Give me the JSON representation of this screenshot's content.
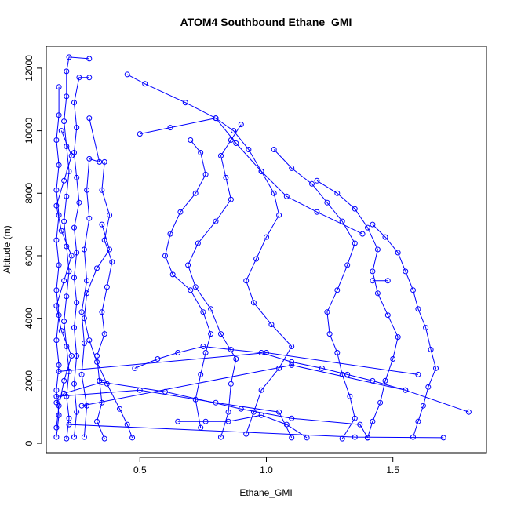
{
  "chart_data": {
    "type": "scatter",
    "title": "ATOM4 Southbound Ethane_GMI",
    "xlabel": "Ethane_GMI",
    "ylabel": "Altitude (m)",
    "xlim": [
      0.13,
      1.87
    ],
    "ylim": [
      -300,
      12700
    ],
    "xticks": [
      0.5,
      1.0,
      1.5
    ],
    "xtick_labels": [
      "0.5",
      "1.0",
      "1.5"
    ],
    "yticks": [
      0,
      2000,
      4000,
      6000,
      8000,
      10000,
      12000
    ],
    "ytick_labels": [
      "0",
      "2000",
      "4000",
      "6000",
      "8000",
      "10000",
      "12000"
    ],
    "grid": false,
    "marker": "open-circle",
    "line_style": "connected",
    "color": "#0000ff",
    "series": [
      {
        "values": [
          [
            0.17,
            200
          ],
          [
            0.18,
            900
          ],
          [
            0.17,
            1700
          ],
          [
            0.18,
            2500
          ],
          [
            0.17,
            3300
          ],
          [
            0.18,
            4100
          ],
          [
            0.17,
            4900
          ],
          [
            0.18,
            5700
          ],
          [
            0.17,
            6500
          ],
          [
            0.18,
            7300
          ],
          [
            0.17,
            8100
          ],
          [
            0.18,
            8900
          ],
          [
            0.17,
            9700
          ],
          [
            0.18,
            10500
          ],
          [
            0.18,
            11400
          ]
        ]
      },
      {
        "values": [
          [
            0.21,
            150
          ],
          [
            0.22,
            800
          ],
          [
            0.21,
            1500
          ],
          [
            0.22,
            2300
          ],
          [
            0.21,
            3100
          ],
          [
            0.2,
            3900
          ],
          [
            0.21,
            4700
          ],
          [
            0.22,
            5500
          ],
          [
            0.21,
            6300
          ],
          [
            0.2,
            7100
          ],
          [
            0.21,
            7900
          ],
          [
            0.22,
            8700
          ],
          [
            0.21,
            9500
          ],
          [
            0.2,
            10300
          ],
          [
            0.21,
            11100
          ],
          [
            0.21,
            11900
          ],
          [
            0.22,
            12350
          ],
          [
            0.3,
            12300
          ]
        ]
      },
      {
        "values": [
          [
            0.24,
            200
          ],
          [
            0.25,
            1000
          ],
          [
            0.24,
            1900
          ],
          [
            0.25,
            2800
          ],
          [
            0.24,
            3700
          ],
          [
            0.25,
            4500
          ],
          [
            0.24,
            5300
          ],
          [
            0.25,
            6100
          ],
          [
            0.24,
            6900
          ],
          [
            0.26,
            7700
          ],
          [
            0.25,
            8500
          ],
          [
            0.24,
            9300
          ],
          [
            0.25,
            10100
          ],
          [
            0.24,
            10900
          ],
          [
            0.26,
            11700
          ],
          [
            0.3,
            11700
          ]
        ]
      },
      {
        "values": [
          [
            0.28,
            200
          ],
          [
            0.29,
            1200
          ],
          [
            0.27,
            2200
          ],
          [
            0.28,
            3200
          ],
          [
            0.27,
            4200
          ],
          [
            0.29,
            5200
          ],
          [
            0.28,
            6200
          ],
          [
            0.3,
            7200
          ],
          [
            0.29,
            8100
          ],
          [
            0.3,
            9100
          ],
          [
            0.34,
            9000
          ],
          [
            0.3,
            10400
          ]
        ]
      },
      {
        "values": [
          [
            0.36,
            150
          ],
          [
            0.33,
            700
          ],
          [
            0.35,
            1300
          ],
          [
            0.34,
            2000
          ],
          [
            0.33,
            2800
          ],
          [
            0.36,
            3500
          ],
          [
            0.35,
            4200
          ],
          [
            0.37,
            5000
          ],
          [
            0.39,
            5800
          ],
          [
            0.36,
            6500
          ],
          [
            0.38,
            7300
          ],
          [
            0.35,
            8100
          ],
          [
            0.36,
            9000
          ]
        ]
      },
      {
        "values": [
          [
            0.47,
            180
          ],
          [
            0.45,
            600
          ],
          [
            0.42,
            1100
          ],
          [
            0.37,
            1900
          ],
          [
            0.33,
            2600
          ],
          [
            0.3,
            3300
          ],
          [
            0.28,
            4000
          ],
          [
            0.29,
            4800
          ],
          [
            0.33,
            5600
          ],
          [
            0.38,
            6200
          ],
          [
            0.35,
            7000
          ]
        ]
      },
      {
        "values": [
          [
            0.17,
            1300
          ],
          [
            0.2,
            1600
          ],
          [
            0.35,
            1950
          ],
          [
            0.6,
            1650
          ],
          [
            0.9,
            1100
          ],
          [
            1.1,
            800
          ],
          [
            1.37,
            600
          ],
          [
            1.4,
            180
          ]
        ]
      },
      {
        "values": [
          [
            0.17,
            1500
          ],
          [
            0.5,
            1700
          ],
          [
            0.8,
            1300
          ],
          [
            1.05,
            1000
          ],
          [
            1.1,
            180
          ]
        ]
      },
      {
        "values": [
          [
            0.65,
            700
          ],
          [
            0.76,
            700
          ],
          [
            0.85,
            700
          ],
          [
            0.98,
            900
          ],
          [
            1.08,
            600
          ],
          [
            1.16,
            180
          ]
        ]
      },
      {
        "values": [
          [
            0.48,
            2400
          ],
          [
            0.57,
            2700
          ],
          [
            0.65,
            2900
          ],
          [
            0.75,
            3100
          ],
          [
            0.86,
            3000
          ],
          [
            0.98,
            2900
          ],
          [
            1.1,
            2600
          ],
          [
            1.22,
            2400
          ],
          [
            1.32,
            2200
          ],
          [
            1.42,
            2000
          ],
          [
            1.55,
            1700
          ],
          [
            1.8,
            1000
          ]
        ]
      },
      {
        "values": [
          [
            0.74,
            500
          ],
          [
            0.72,
            1400
          ],
          [
            0.74,
            2200
          ],
          [
            0.76,
            2900
          ],
          [
            0.78,
            3500
          ],
          [
            0.75,
            4200
          ],
          [
            0.7,
            4900
          ],
          [
            0.63,
            5400
          ],
          [
            0.6,
            6000
          ],
          [
            0.62,
            6700
          ],
          [
            0.66,
            7400
          ],
          [
            0.72,
            8000
          ],
          [
            0.76,
            8600
          ],
          [
            0.74,
            9300
          ],
          [
            0.7,
            9700
          ]
        ]
      },
      {
        "values": [
          [
            0.82,
            200
          ],
          [
            0.85,
            1000
          ],
          [
            0.86,
            1900
          ],
          [
            0.88,
            2700
          ],
          [
            0.82,
            3500
          ],
          [
            0.78,
            4300
          ],
          [
            0.72,
            5000
          ],
          [
            0.69,
            5700
          ],
          [
            0.73,
            6400
          ],
          [
            0.8,
            7100
          ],
          [
            0.86,
            7800
          ],
          [
            0.84,
            8500
          ],
          [
            0.82,
            9200
          ],
          [
            0.86,
            9700
          ],
          [
            0.9,
            10200
          ]
        ]
      },
      {
        "values": [
          [
            0.92,
            300
          ],
          [
            0.95,
            1000
          ],
          [
            0.98,
            1700
          ],
          [
            1.05,
            2400
          ],
          [
            1.1,
            3100
          ],
          [
            1.02,
            3800
          ],
          [
            0.95,
            4500
          ],
          [
            0.92,
            5200
          ],
          [
            0.96,
            5900
          ],
          [
            1.0,
            6600
          ],
          [
            1.05,
            7300
          ],
          [
            1.03,
            8000
          ],
          [
            0.98,
            8700
          ],
          [
            0.93,
            9400
          ],
          [
            0.87,
            10000
          ],
          [
            0.8,
            10400
          ],
          [
            0.62,
            10100
          ],
          [
            0.5,
            9900
          ]
        ]
      },
      {
        "values": [
          [
            0.45,
            11800
          ],
          [
            0.52,
            11500
          ],
          [
            0.68,
            10900
          ],
          [
            0.8,
            10400
          ],
          [
            0.88,
            9600
          ],
          [
            0.98,
            8700
          ],
          [
            1.08,
            7900
          ],
          [
            1.2,
            7400
          ],
          [
            1.38,
            6700
          ]
        ]
      },
      {
        "values": [
          [
            1.3,
            150
          ],
          [
            1.35,
            800
          ],
          [
            1.33,
            1500
          ],
          [
            1.3,
            2200
          ],
          [
            1.28,
            2900
          ],
          [
            1.25,
            3500
          ],
          [
            1.24,
            4200
          ],
          [
            1.28,
            4900
          ],
          [
            1.32,
            5700
          ],
          [
            1.35,
            6400
          ],
          [
            1.3,
            7100
          ],
          [
            1.24,
            7700
          ],
          [
            1.18,
            8300
          ],
          [
            1.1,
            8800
          ],
          [
            1.03,
            9400
          ]
        ]
      },
      {
        "values": [
          [
            1.4,
            180
          ],
          [
            1.42,
            700
          ],
          [
            1.45,
            1300
          ],
          [
            1.47,
            2000
          ],
          [
            1.5,
            2700
          ],
          [
            1.52,
            3400
          ],
          [
            1.48,
            4100
          ],
          [
            1.44,
            4800
          ],
          [
            1.42,
            5500
          ],
          [
            1.44,
            6200
          ],
          [
            1.4,
            6900
          ],
          [
            1.35,
            7500
          ],
          [
            1.28,
            8000
          ],
          [
            1.2,
            8400
          ]
        ]
      },
      {
        "values": [
          [
            1.58,
            200
          ],
          [
            1.6,
            700
          ],
          [
            1.62,
            1200
          ],
          [
            1.64,
            1800
          ],
          [
            1.67,
            2400
          ],
          [
            1.65,
            3000
          ],
          [
            1.63,
            3700
          ],
          [
            1.6,
            4300
          ],
          [
            1.58,
            4900
          ],
          [
            1.55,
            5500
          ],
          [
            1.52,
            6100
          ],
          [
            1.47,
            6600
          ],
          [
            1.42,
            7000
          ]
        ]
      },
      {
        "values": [
          [
            1.42,
            5200
          ],
          [
            1.48,
            5200
          ]
        ]
      },
      {
        "values": [
          [
            0.18,
            2300
          ],
          [
            1.0,
            2900
          ],
          [
            1.6,
            2200
          ]
        ]
      },
      {
        "values": [
          [
            0.27,
            1200
          ],
          [
            1.1,
            2500
          ],
          [
            1.55,
            1700
          ]
        ]
      },
      {
        "values": [
          [
            0.22,
            600
          ],
          [
            1.35,
            200
          ],
          [
            1.7,
            180
          ]
        ]
      },
      {
        "values": [
          [
            0.17,
            500
          ],
          [
            0.18,
            1200
          ],
          [
            0.2,
            2000
          ],
          [
            0.23,
            2800
          ],
          [
            0.19,
            3600
          ],
          [
            0.17,
            4400
          ],
          [
            0.2,
            5200
          ],
          [
            0.23,
            6000
          ],
          [
            0.19,
            6800
          ],
          [
            0.17,
            7600
          ],
          [
            0.2,
            8400
          ],
          [
            0.23,
            9200
          ],
          [
            0.19,
            10000
          ]
        ]
      }
    ]
  }
}
